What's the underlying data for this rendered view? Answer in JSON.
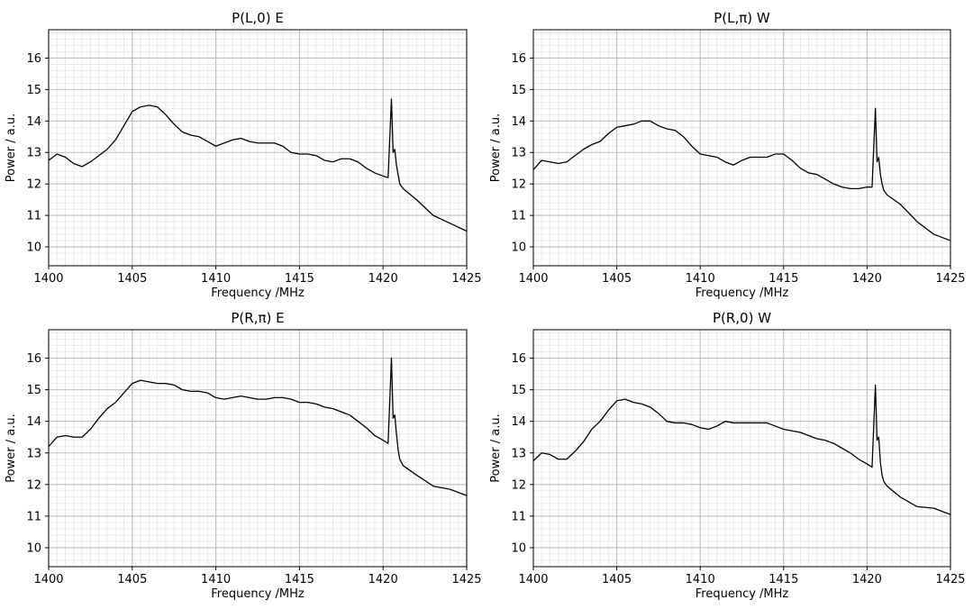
{
  "chart_data": [
    {
      "type": "line",
      "title": "P(L,0) E",
      "xlabel": "Frequency /MHz",
      "ylabel": "Power / a.u.",
      "xlim": [
        1400,
        1425
      ],
      "ylim": [
        9.4,
        16.9
      ],
      "x_ticks": [
        "1400",
        "1405",
        "1410",
        "1415",
        "1420",
        "1425"
      ],
      "y_ticks": [
        "10",
        "11",
        "12",
        "13",
        "14",
        "15",
        "16"
      ],
      "grid": true,
      "series": [
        {
          "name": "P(L,0) E",
          "x": [
            1400,
            1400.5,
            1401,
            1401.5,
            1402,
            1402.5,
            1403,
            1403.5,
            1404,
            1404.5,
            1405,
            1405.5,
            1406,
            1406.5,
            1407,
            1407.5,
            1408,
            1408.5,
            1409,
            1409.5,
            1410,
            1410.5,
            1411,
            1411.5,
            1412,
            1412.5,
            1413,
            1413.5,
            1414,
            1414.5,
            1415,
            1415.5,
            1416,
            1416.5,
            1417,
            1417.5,
            1418,
            1418.5,
            1419,
            1419.5,
            1420,
            1420.3,
            1420.5,
            1420.6,
            1420.7,
            1420.8,
            1420.9,
            1421,
            1421.2,
            1422,
            1423,
            1424,
            1425
          ],
          "y": [
            12.75,
            12.95,
            12.85,
            12.65,
            12.55,
            12.7,
            12.9,
            13.1,
            13.4,
            13.85,
            14.3,
            14.45,
            14.5,
            14.45,
            14.2,
            13.9,
            13.65,
            13.55,
            13.5,
            13.35,
            13.2,
            13.3,
            13.4,
            13.45,
            13.35,
            13.3,
            13.3,
            13.3,
            13.2,
            13.0,
            12.95,
            12.95,
            12.9,
            12.75,
            12.7,
            12.8,
            12.8,
            12.7,
            12.5,
            12.35,
            12.25,
            12.2,
            14.7,
            13.0,
            13.1,
            12.6,
            12.3,
            12.0,
            11.85,
            11.5,
            11.0,
            10.75,
            10.5
          ]
        }
      ]
    },
    {
      "type": "line",
      "title": "P(L,π) W",
      "xlabel": "Frequency /MHz",
      "ylabel": "Power / a.u.",
      "xlim": [
        1400,
        1425
      ],
      "ylim": [
        9.4,
        16.9
      ],
      "x_ticks": [
        "1400",
        "1405",
        "1410",
        "1415",
        "1420",
        "1425"
      ],
      "y_ticks": [
        "10",
        "11",
        "12",
        "13",
        "14",
        "15",
        "16"
      ],
      "grid": true,
      "series": [
        {
          "name": "P(L,π) W",
          "x": [
            1400,
            1400.5,
            1401,
            1401.5,
            1402,
            1402.5,
            1403,
            1403.5,
            1404,
            1404.5,
            1405,
            1405.5,
            1406,
            1406.5,
            1407,
            1407.5,
            1408,
            1408.5,
            1409,
            1409.5,
            1410,
            1410.5,
            1411,
            1411.5,
            1412,
            1412.5,
            1413,
            1413.5,
            1414,
            1414.5,
            1415,
            1415.5,
            1416,
            1416.5,
            1417,
            1417.5,
            1418,
            1418.5,
            1419,
            1419.5,
            1420,
            1420.3,
            1420.5,
            1420.6,
            1420.7,
            1420.8,
            1420.9,
            1421,
            1421.2,
            1422,
            1423,
            1424,
            1425
          ],
          "y": [
            12.45,
            12.75,
            12.7,
            12.65,
            12.7,
            12.9,
            13.1,
            13.25,
            13.35,
            13.6,
            13.8,
            13.85,
            13.9,
            14.0,
            14.0,
            13.85,
            13.75,
            13.7,
            13.5,
            13.2,
            12.95,
            12.9,
            12.85,
            12.7,
            12.6,
            12.75,
            12.85,
            12.85,
            12.85,
            12.95,
            12.95,
            12.75,
            12.5,
            12.35,
            12.3,
            12.15,
            12.0,
            11.9,
            11.85,
            11.85,
            11.9,
            11.9,
            14.4,
            12.7,
            12.85,
            12.3,
            12.0,
            11.8,
            11.65,
            11.35,
            10.8,
            10.4,
            10.2
          ]
        }
      ]
    },
    {
      "type": "line",
      "title": "P(R,π) E",
      "xlabel": "Frequency /MHz",
      "ylabel": "Power / a.u.",
      "xlim": [
        1400,
        1425
      ],
      "ylim": [
        9.4,
        16.9
      ],
      "x_ticks": [
        "1400",
        "1405",
        "1410",
        "1415",
        "1420",
        "1425"
      ],
      "y_ticks": [
        "10",
        "11",
        "12",
        "13",
        "14",
        "15",
        "16"
      ],
      "grid": true,
      "series": [
        {
          "name": "P(R,π) E",
          "x": [
            1400,
            1400.5,
            1401,
            1401.5,
            1402,
            1402.5,
            1403,
            1403.5,
            1404,
            1404.5,
            1405,
            1405.5,
            1406,
            1406.5,
            1407,
            1407.5,
            1408,
            1408.5,
            1409,
            1409.5,
            1410,
            1410.5,
            1411,
            1411.5,
            1412,
            1412.5,
            1413,
            1413.5,
            1414,
            1414.5,
            1415,
            1415.5,
            1416,
            1416.5,
            1417,
            1417.5,
            1418,
            1418.5,
            1419,
            1419.5,
            1420,
            1420.3,
            1420.5,
            1420.6,
            1420.7,
            1420.8,
            1420.9,
            1421,
            1421.2,
            1422,
            1423,
            1424,
            1425
          ],
          "y": [
            13.2,
            13.5,
            13.55,
            13.5,
            13.5,
            13.75,
            14.1,
            14.4,
            14.6,
            14.9,
            15.2,
            15.3,
            15.25,
            15.2,
            15.2,
            15.15,
            15.0,
            14.95,
            14.95,
            14.9,
            14.75,
            14.7,
            14.75,
            14.8,
            14.75,
            14.7,
            14.7,
            14.75,
            14.75,
            14.7,
            14.6,
            14.6,
            14.55,
            14.45,
            14.4,
            14.3,
            14.2,
            14.0,
            13.8,
            13.55,
            13.4,
            13.3,
            16.0,
            14.1,
            14.2,
            13.6,
            13.1,
            12.8,
            12.6,
            12.3,
            11.95,
            11.85,
            11.65
          ]
        }
      ]
    },
    {
      "type": "line",
      "title": "P(R,0) W",
      "xlabel": "Frequency /MHz",
      "ylabel": "Power / a.u.",
      "xlim": [
        1400,
        1425
      ],
      "ylim": [
        9.4,
        16.9
      ],
      "x_ticks": [
        "1400",
        "1405",
        "1410",
        "1415",
        "1420",
        "1425"
      ],
      "y_ticks": [
        "10",
        "11",
        "12",
        "13",
        "14",
        "15",
        "16"
      ],
      "grid": true,
      "series": [
        {
          "name": "P(R,0) W",
          "x": [
            1400,
            1400.5,
            1401,
            1401.5,
            1402,
            1402.5,
            1403,
            1403.5,
            1404,
            1404.5,
            1405,
            1405.5,
            1406,
            1406.5,
            1407,
            1407.5,
            1408,
            1408.5,
            1409,
            1409.5,
            1410,
            1410.5,
            1411,
            1411.5,
            1412,
            1412.5,
            1413,
            1413.5,
            1414,
            1414.5,
            1415,
            1415.5,
            1416,
            1416.5,
            1417,
            1417.5,
            1418,
            1418.5,
            1419,
            1419.5,
            1420,
            1420.3,
            1420.5,
            1420.6,
            1420.7,
            1420.8,
            1420.9,
            1421,
            1421.2,
            1422,
            1423,
            1424,
            1425
          ],
          "y": [
            12.75,
            13.0,
            12.95,
            12.8,
            12.8,
            13.05,
            13.35,
            13.75,
            14.0,
            14.35,
            14.65,
            14.7,
            14.6,
            14.55,
            14.45,
            14.25,
            14.0,
            13.95,
            13.95,
            13.9,
            13.8,
            13.75,
            13.85,
            14.0,
            13.95,
            13.95,
            13.95,
            13.95,
            13.95,
            13.85,
            13.75,
            13.7,
            13.65,
            13.55,
            13.45,
            13.4,
            13.3,
            13.15,
            13.0,
            12.8,
            12.65,
            12.55,
            15.15,
            13.4,
            13.5,
            12.7,
            12.3,
            12.1,
            11.95,
            11.6,
            11.3,
            11.25,
            11.05
          ]
        }
      ]
    }
  ]
}
